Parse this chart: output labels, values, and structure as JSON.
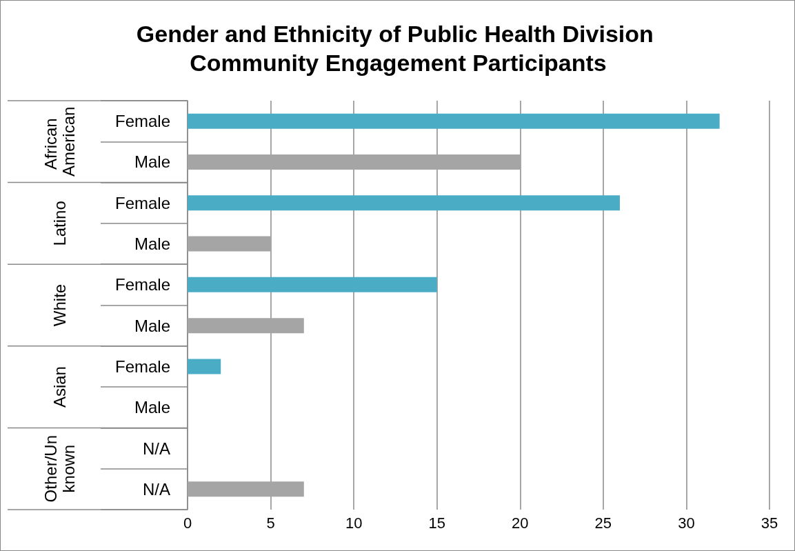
{
  "chart_data": {
    "type": "bar",
    "orientation": "horizontal",
    "title": "Gender and Ethnicity of Public Health Division Community Engagement Participants",
    "categories": [
      "Female",
      "Male",
      "Female",
      "Male",
      "Female",
      "Male",
      "Female",
      "Male",
      "N/A",
      "N/A"
    ],
    "values": [
      32,
      20,
      26,
      5,
      15,
      7,
      2,
      null,
      null,
      7
    ],
    "colors": [
      "#4bacc6",
      "#a5a5a5",
      "#4bacc6",
      "#a5a5a5",
      "#4bacc6",
      "#a5a5a5",
      "#4bacc6",
      "#a5a5a5",
      "#4bacc6",
      "#a5a5a5"
    ],
    "annotations": [
      "African American",
      "Latino",
      "White",
      "Asian",
      "Other/Unknown"
    ],
    "xlim": [
      0,
      35
    ],
    "xticks": [
      0,
      5,
      10,
      15,
      20,
      25,
      30,
      35
    ],
    "grid": "x"
  }
}
